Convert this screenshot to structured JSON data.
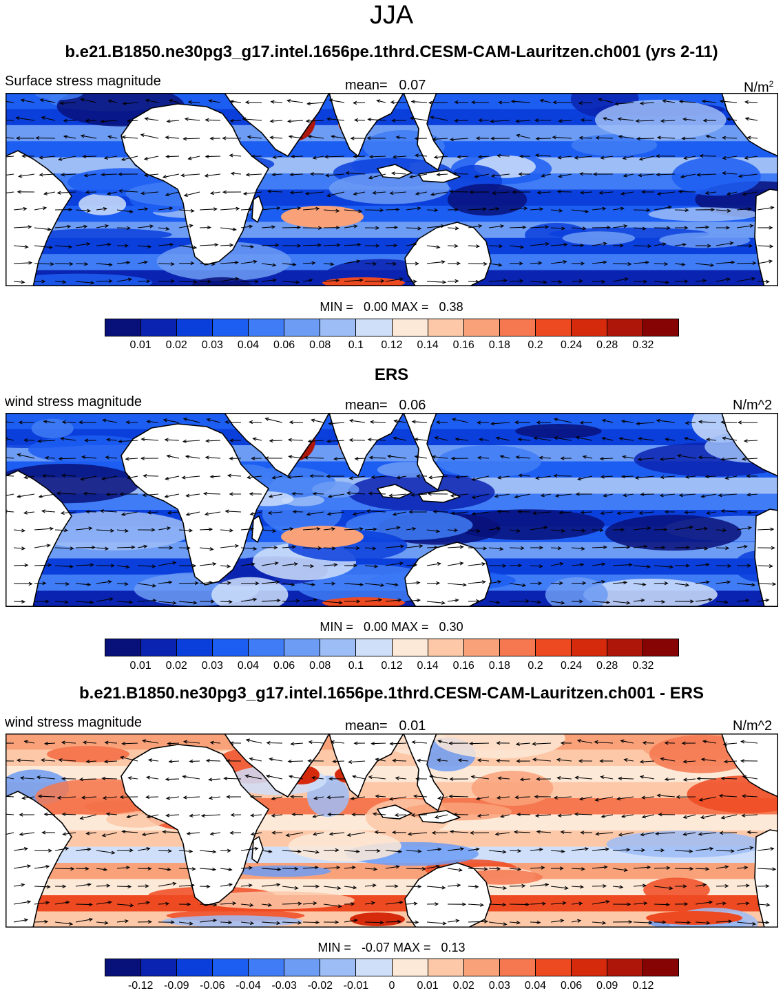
{
  "title": "JJA",
  "units_label_superscript": "2",
  "palette_sequential": [
    "#08107a",
    "#0a23b0",
    "#0b3fdc",
    "#1d5ef2",
    "#3f7cf5",
    "#6d9cf5",
    "#9dbdf7",
    "#cfdffa",
    "#fde9d7",
    "#fcc8a8",
    "#f9a27a",
    "#f57850",
    "#ee4a22",
    "#d62a0c",
    "#ad1608",
    "#870404"
  ],
  "palette_diverging": [
    "#08107a",
    "#0a23b0",
    "#0b3fdc",
    "#1d5ef2",
    "#3f7cf5",
    "#6d9cf5",
    "#9dbdf7",
    "#cfdffa",
    "#fde9d7",
    "#fcc8a8",
    "#f9a27a",
    "#f57850",
    "#ee4a22",
    "#d62a0c",
    "#ad1608",
    "#870404"
  ],
  "panels": [
    {
      "header": "b.e21.B1850.ne30pg3_g17.intel.1656pe.1thrd.CESM-CAM-Lauritzen.ch001 (yrs 2-11)",
      "left_label": "Surface stress magnitude",
      "mean_label": "mean=",
      "mean_value": "0.07",
      "units_base": "N/m",
      "min_label": "MIN =",
      "min_value": "0.00",
      "max_label": "MAX =",
      "max_value": "0.38",
      "levels": [
        "0.01",
        "0.02",
        "0.03",
        "0.04",
        "0.06",
        "0.08",
        "0.1",
        "0.12",
        "0.14",
        "0.16",
        "0.18",
        "0.2",
        "0.24",
        "0.28",
        "0.32"
      ]
    },
    {
      "header": "ERS",
      "left_label": "wind stress magnitude",
      "mean_label": "mean=",
      "mean_value": "0.06",
      "units": "N/m^2",
      "min_label": "MIN =",
      "min_value": "0.00",
      "max_label": "MAX =",
      "max_value": "0.30",
      "levels": [
        "0.01",
        "0.02",
        "0.03",
        "0.04",
        "0.06",
        "0.08",
        "0.1",
        "0.12",
        "0.14",
        "0.16",
        "0.18",
        "0.2",
        "0.24",
        "0.28",
        "0.32"
      ]
    },
    {
      "header": "b.e21.B1850.ne30pg3_g17.intel.1656pe.1thrd.CESM-CAM-Lauritzen.ch001 - ERS",
      "left_label": "wind stress magnitude",
      "mean_label": "mean=",
      "mean_value": "0.01",
      "units": "N/m^2",
      "min_label": "MIN =",
      "min_value": "-0.07",
      "max_label": "MAX =",
      "max_value": "0.13",
      "levels": [
        "-0.12",
        "-0.09",
        "-0.06",
        "-0.04",
        "-0.03",
        "-0.02",
        "-0.01",
        "0",
        "0.01",
        "0.02",
        "0.03",
        "0.04",
        "0.06",
        "0.09",
        "0.12"
      ]
    }
  ]
}
